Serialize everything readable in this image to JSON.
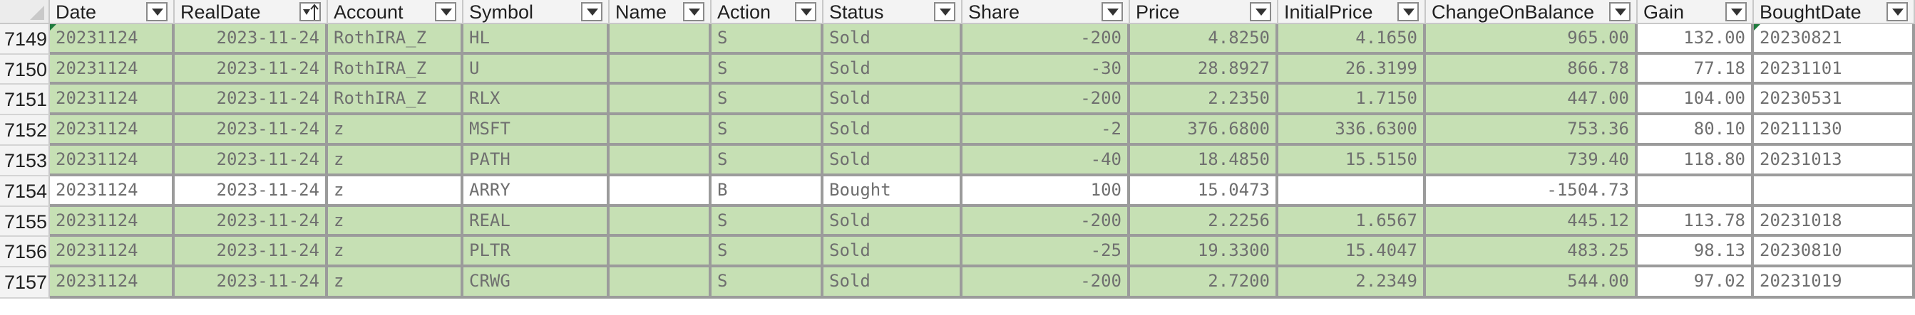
{
  "colors": {
    "sold_fill": "#c6e0b4",
    "header_fill": "#f3f3f3",
    "grid": "#9b9b9b",
    "text": "#6f6f6f",
    "comment_marker": "#1e7a3c"
  },
  "columns": [
    {
      "key": "date",
      "label": "Date",
      "filter_icon": "filter-dropdown-icon"
    },
    {
      "key": "realdate",
      "label": "RealDate",
      "filter_icon": "sort-ascending-filter-icon"
    },
    {
      "key": "account",
      "label": "Account",
      "filter_icon": "filter-dropdown-icon"
    },
    {
      "key": "symbol",
      "label": "Symbol",
      "filter_icon": "filter-dropdown-icon"
    },
    {
      "key": "name",
      "label": "Name",
      "filter_icon": "filter-dropdown-icon"
    },
    {
      "key": "action",
      "label": "Action",
      "filter_icon": "filter-dropdown-icon"
    },
    {
      "key": "status",
      "label": "Status",
      "filter_icon": "filter-dropdown-icon"
    },
    {
      "key": "share",
      "label": "Share",
      "filter_icon": "filter-dropdown-icon"
    },
    {
      "key": "price",
      "label": "Price",
      "filter_icon": "filter-dropdown-icon"
    },
    {
      "key": "initialprice",
      "label": "InitialPrice",
      "filter_icon": "filter-dropdown-icon"
    },
    {
      "key": "changeonbalance",
      "label": "ChangeOnBalance",
      "filter_icon": "filter-dropdown-icon"
    },
    {
      "key": "gain",
      "label": "Gain",
      "filter_icon": "filter-dropdown-icon"
    },
    {
      "key": "boughtdate",
      "label": "BoughtDate",
      "filter_icon": "filter-dropdown-icon"
    }
  ],
  "rows": [
    {
      "num": "7149",
      "date": "20231124",
      "realdate": "2023-11-24",
      "account": "RothIRA_Z",
      "symbol": "HL",
      "name": "",
      "action": "S",
      "status": "Sold",
      "share": "-200",
      "price": "4.8250",
      "initialprice": "4.1650",
      "changeonbalance": "965.00",
      "gain": "132.00",
      "boughtdate": "20230821",
      "fill": "sold"
    },
    {
      "num": "7150",
      "date": "20231124",
      "realdate": "2023-11-24",
      "account": "RothIRA_Z",
      "symbol": "U",
      "name": "",
      "action": "S",
      "status": "Sold",
      "share": "-30",
      "price": "28.8927",
      "initialprice": "26.3199",
      "changeonbalance": "866.78",
      "gain": "77.18",
      "boughtdate": "20231101",
      "fill": "sold"
    },
    {
      "num": "7151",
      "date": "20231124",
      "realdate": "2023-11-24",
      "account": "RothIRA_Z",
      "symbol": "RLX",
      "name": "",
      "action": "S",
      "status": "Sold",
      "share": "-200",
      "price": "2.2350",
      "initialprice": "1.7150",
      "changeonbalance": "447.00",
      "gain": "104.00",
      "boughtdate": "20230531",
      "fill": "sold"
    },
    {
      "num": "7152",
      "date": "20231124",
      "realdate": "2023-11-24",
      "account": "z",
      "symbol": "MSFT",
      "name": "",
      "action": "S",
      "status": "Sold",
      "share": "-2",
      "price": "376.6800",
      "initialprice": "336.6300",
      "changeonbalance": "753.36",
      "gain": "80.10",
      "boughtdate": "20211130",
      "fill": "sold"
    },
    {
      "num": "7153",
      "date": "20231124",
      "realdate": "2023-11-24",
      "account": "z",
      "symbol": "PATH",
      "name": "",
      "action": "S",
      "status": "Sold",
      "share": "-40",
      "price": "18.4850",
      "initialprice": "15.5150",
      "changeonbalance": "739.40",
      "gain": "118.80",
      "boughtdate": "20231013",
      "fill": "sold"
    },
    {
      "num": "7154",
      "date": "20231124",
      "realdate": "2023-11-24",
      "account": "z",
      "symbol": "ARRY",
      "name": "",
      "action": "B",
      "status": "Bought",
      "share": "100",
      "price": "15.0473",
      "initialprice": "",
      "changeonbalance": "-1504.73",
      "gain": "",
      "boughtdate": "",
      "fill": "white"
    },
    {
      "num": "7155",
      "date": "20231124",
      "realdate": "2023-11-24",
      "account": "z",
      "symbol": "REAL",
      "name": "",
      "action": "S",
      "status": "Sold",
      "share": "-200",
      "price": "2.2256",
      "initialprice": "1.6567",
      "changeonbalance": "445.12",
      "gain": "113.78",
      "boughtdate": "20231018",
      "fill": "sold"
    },
    {
      "num": "7156",
      "date": "20231124",
      "realdate": "2023-11-24",
      "account": "z",
      "symbol": "PLTR",
      "name": "",
      "action": "S",
      "status": "Sold",
      "share": "-25",
      "price": "19.3300",
      "initialprice": "15.4047",
      "changeonbalance": "483.25",
      "gain": "98.13",
      "boughtdate": "20230810",
      "fill": "sold"
    },
    {
      "num": "7157",
      "date": "20231124",
      "realdate": "2023-11-24",
      "account": "z",
      "symbol": "CRWG",
      "name": "",
      "action": "S",
      "status": "Sold",
      "share": "-200",
      "price": "2.7200",
      "initialprice": "2.2349",
      "changeonbalance": "544.00",
      "gain": "97.02",
      "boughtdate": "20231019",
      "fill": "sold"
    }
  ]
}
